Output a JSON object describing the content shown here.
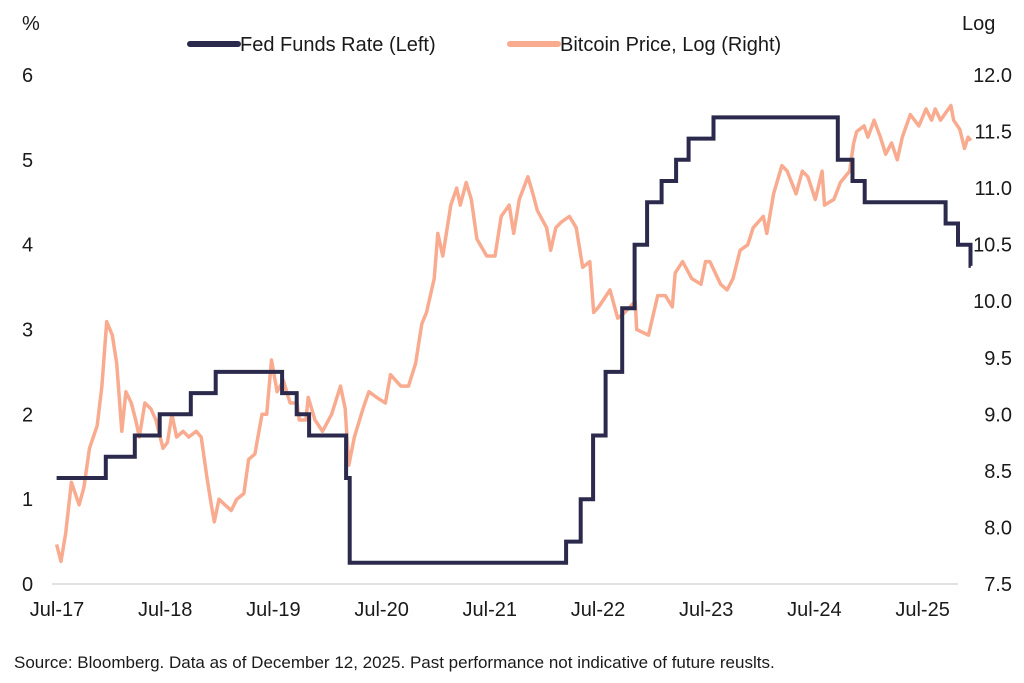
{
  "chart_data": {
    "type": "line",
    "left_axis": {
      "label": "%",
      "ticks": [
        "0",
        "1",
        "2",
        "3",
        "4",
        "5",
        "6"
      ],
      "range": [
        0,
        6
      ]
    },
    "right_axis": {
      "label": "Log",
      "ticks": [
        "7.5",
        "8.0",
        "8.5",
        "9.0",
        "9.5",
        "10.0",
        "10.5",
        "11.0",
        "11.5",
        "12.0"
      ],
      "range": [
        7.5,
        12.0
      ]
    },
    "x_ticks": [
      "Jul-17",
      "Jul-18",
      "Jul-19",
      "Jul-20",
      "Jul-21",
      "Jul-22",
      "Jul-23",
      "Jul-24",
      "Jul-25"
    ],
    "x_range": [
      "2017-07-01",
      "2025-12-12"
    ],
    "legend_placement": "top-center",
    "series": [
      {
        "name": "Fed Funds Rate (Left)",
        "axis": "left",
        "color": "#2b2a4c",
        "step": true,
        "points": [
          [
            "2017-07-01",
            1.25
          ],
          [
            "2017-12-14",
            1.5
          ],
          [
            "2018-03-22",
            1.75
          ],
          [
            "2018-06-14",
            2.0
          ],
          [
            "2018-09-27",
            2.25
          ],
          [
            "2018-12-20",
            2.5
          ],
          [
            "2019-08-01",
            2.25
          ],
          [
            "2019-09-19",
            2.0
          ],
          [
            "2019-10-31",
            1.75
          ],
          [
            "2020-03-04",
            1.25
          ],
          [
            "2020-03-16",
            0.25
          ],
          [
            "2022-03-17",
            0.5
          ],
          [
            "2022-05-05",
            1.0
          ],
          [
            "2022-06-16",
            1.75
          ],
          [
            "2022-07-28",
            2.5
          ],
          [
            "2022-09-22",
            3.25
          ],
          [
            "2022-11-03",
            4.0
          ],
          [
            "2022-12-15",
            4.5
          ],
          [
            "2023-02-02",
            4.75
          ],
          [
            "2023-03-23",
            5.0
          ],
          [
            "2023-05-04",
            5.25
          ],
          [
            "2023-07-27",
            5.5
          ],
          [
            "2024-09-19",
            5.0
          ],
          [
            "2024-11-08",
            4.75
          ],
          [
            "2024-12-19",
            4.5
          ],
          [
            "2025-09-18",
            4.25
          ],
          [
            "2025-10-30",
            4.0
          ],
          [
            "2025-12-11",
            3.75
          ],
          [
            "2025-12-12",
            3.75
          ]
        ]
      },
      {
        "name": "Bitcoin Price, Log (Right)",
        "axis": "right",
        "color": "#f9ab90",
        "step": false,
        "points": [
          [
            "2017-07-01",
            7.85
          ],
          [
            "2017-07-16",
            7.7
          ],
          [
            "2017-08-01",
            7.95
          ],
          [
            "2017-08-20",
            8.4
          ],
          [
            "2017-09-15",
            8.2
          ],
          [
            "2017-10-01",
            8.35
          ],
          [
            "2017-10-20",
            8.7
          ],
          [
            "2017-11-15",
            8.9
          ],
          [
            "2017-12-01",
            9.25
          ],
          [
            "2017-12-17",
            9.82
          ],
          [
            "2018-01-05",
            9.7
          ],
          [
            "2018-01-20",
            9.45
          ],
          [
            "2018-02-06",
            8.85
          ],
          [
            "2018-02-20",
            9.2
          ],
          [
            "2018-03-10",
            9.1
          ],
          [
            "2018-03-25",
            8.95
          ],
          [
            "2018-04-06",
            8.8
          ],
          [
            "2018-04-25",
            9.1
          ],
          [
            "2018-05-15",
            9.05
          ],
          [
            "2018-06-01",
            8.95
          ],
          [
            "2018-06-25",
            8.7
          ],
          [
            "2018-07-10",
            8.75
          ],
          [
            "2018-07-25",
            9.0
          ],
          [
            "2018-08-10",
            8.8
          ],
          [
            "2018-09-01",
            8.85
          ],
          [
            "2018-09-20",
            8.8
          ],
          [
            "2018-10-15",
            8.85
          ],
          [
            "2018-11-01",
            8.8
          ],
          [
            "2018-11-20",
            8.45
          ],
          [
            "2018-12-05",
            8.2
          ],
          [
            "2018-12-15",
            8.05
          ],
          [
            "2018-12-31",
            8.25
          ],
          [
            "2019-01-20",
            8.2
          ],
          [
            "2019-02-10",
            8.15
          ],
          [
            "2019-03-01",
            8.25
          ],
          [
            "2019-03-25",
            8.3
          ],
          [
            "2019-04-10",
            8.6
          ],
          [
            "2019-05-01",
            8.65
          ],
          [
            "2019-05-25",
            9.0
          ],
          [
            "2019-06-10",
            9.0
          ],
          [
            "2019-06-26",
            9.48
          ],
          [
            "2019-07-15",
            9.2
          ],
          [
            "2019-08-05",
            9.3
          ],
          [
            "2019-08-28",
            9.1
          ],
          [
            "2019-09-20",
            9.1
          ],
          [
            "2019-09-28",
            8.95
          ],
          [
            "2019-10-20",
            8.95
          ],
          [
            "2019-10-28",
            9.15
          ],
          [
            "2019-11-20",
            8.95
          ],
          [
            "2019-12-15",
            8.85
          ],
          [
            "2020-01-15",
            9.0
          ],
          [
            "2020-02-14",
            9.25
          ],
          [
            "2020-03-01",
            9.05
          ],
          [
            "2020-03-13",
            8.55
          ],
          [
            "2020-04-01",
            8.8
          ],
          [
            "2020-04-30",
            9.05
          ],
          [
            "2020-05-20",
            9.2
          ],
          [
            "2020-06-15",
            9.15
          ],
          [
            "2020-07-15",
            9.1
          ],
          [
            "2020-08-01",
            9.35
          ],
          [
            "2020-09-05",
            9.25
          ],
          [
            "2020-10-01",
            9.25
          ],
          [
            "2020-10-25",
            9.45
          ],
          [
            "2020-11-15",
            9.8
          ],
          [
            "2020-12-01",
            9.9
          ],
          [
            "2020-12-27",
            10.2
          ],
          [
            "2021-01-08",
            10.6
          ],
          [
            "2021-01-25",
            10.4
          ],
          [
            "2021-02-21",
            10.85
          ],
          [
            "2021-03-13",
            11.0
          ],
          [
            "2021-03-25",
            10.85
          ],
          [
            "2021-04-14",
            11.05
          ],
          [
            "2021-05-01",
            10.9
          ],
          [
            "2021-05-20",
            10.55
          ],
          [
            "2021-06-22",
            10.4
          ],
          [
            "2021-07-20",
            10.4
          ],
          [
            "2021-08-10",
            10.75
          ],
          [
            "2021-09-06",
            10.85
          ],
          [
            "2021-09-21",
            10.6
          ],
          [
            "2021-10-10",
            10.9
          ],
          [
            "2021-11-08",
            11.1
          ],
          [
            "2021-11-25",
            10.95
          ],
          [
            "2021-12-10",
            10.8
          ],
          [
            "2022-01-10",
            10.65
          ],
          [
            "2022-01-24",
            10.45
          ],
          [
            "2022-02-10",
            10.65
          ],
          [
            "2022-03-01",
            10.7
          ],
          [
            "2022-03-28",
            10.75
          ],
          [
            "2022-04-20",
            10.65
          ],
          [
            "2022-05-12",
            10.3
          ],
          [
            "2022-06-05",
            10.35
          ],
          [
            "2022-06-18",
            9.9
          ],
          [
            "2022-07-05",
            9.95
          ],
          [
            "2022-08-12",
            10.1
          ],
          [
            "2022-09-07",
            9.85
          ],
          [
            "2022-10-01",
            9.9
          ],
          [
            "2022-11-05",
            10.0
          ],
          [
            "2022-11-10",
            9.75
          ],
          [
            "2022-12-20",
            9.7
          ],
          [
            "2023-01-20",
            10.05
          ],
          [
            "2023-02-15",
            10.05
          ],
          [
            "2023-03-10",
            9.95
          ],
          [
            "2023-03-20",
            10.25
          ],
          [
            "2023-04-14",
            10.35
          ],
          [
            "2023-05-15",
            10.2
          ],
          [
            "2023-06-15",
            10.15
          ],
          [
            "2023-06-30",
            10.35
          ],
          [
            "2023-07-15",
            10.35
          ],
          [
            "2023-08-20",
            10.15
          ],
          [
            "2023-09-11",
            10.1
          ],
          [
            "2023-10-01",
            10.2
          ],
          [
            "2023-10-25",
            10.45
          ],
          [
            "2023-11-20",
            10.5
          ],
          [
            "2023-12-08",
            10.65
          ],
          [
            "2024-01-11",
            10.75
          ],
          [
            "2024-01-23",
            10.6
          ],
          [
            "2024-02-15",
            10.95
          ],
          [
            "2024-03-14",
            11.2
          ],
          [
            "2024-04-01",
            11.15
          ],
          [
            "2024-05-01",
            10.95
          ],
          [
            "2024-05-22",
            11.15
          ],
          [
            "2024-06-10",
            11.1
          ],
          [
            "2024-07-05",
            10.9
          ],
          [
            "2024-07-28",
            11.15
          ],
          [
            "2024-08-05",
            10.85
          ],
          [
            "2024-09-06",
            10.9
          ],
          [
            "2024-09-28",
            11.05
          ],
          [
            "2024-10-29",
            11.15
          ],
          [
            "2024-11-12",
            11.4
          ],
          [
            "2024-11-22",
            11.5
          ],
          [
            "2024-12-17",
            11.55
          ],
          [
            "2024-12-30",
            11.45
          ],
          [
            "2025-01-20",
            11.6
          ],
          [
            "2025-02-10",
            11.45
          ],
          [
            "2025-02-28",
            11.3
          ],
          [
            "2025-03-20",
            11.4
          ],
          [
            "2025-04-08",
            11.25
          ],
          [
            "2025-04-25",
            11.45
          ],
          [
            "2025-05-22",
            11.65
          ],
          [
            "2025-06-20",
            11.55
          ],
          [
            "2025-07-14",
            11.7
          ],
          [
            "2025-08-02",
            11.6
          ],
          [
            "2025-08-14",
            11.7
          ],
          [
            "2025-09-01",
            11.6
          ],
          [
            "2025-10-06",
            11.73
          ],
          [
            "2025-10-15",
            11.6
          ],
          [
            "2025-11-05",
            11.52
          ],
          [
            "2025-11-21",
            11.35
          ],
          [
            "2025-12-03",
            11.45
          ],
          [
            "2025-12-12",
            11.42
          ]
        ]
      }
    ]
  },
  "source": "Source: Bloomberg. Data as of December 12, 2025. Past performance not indicative of future reuslts."
}
